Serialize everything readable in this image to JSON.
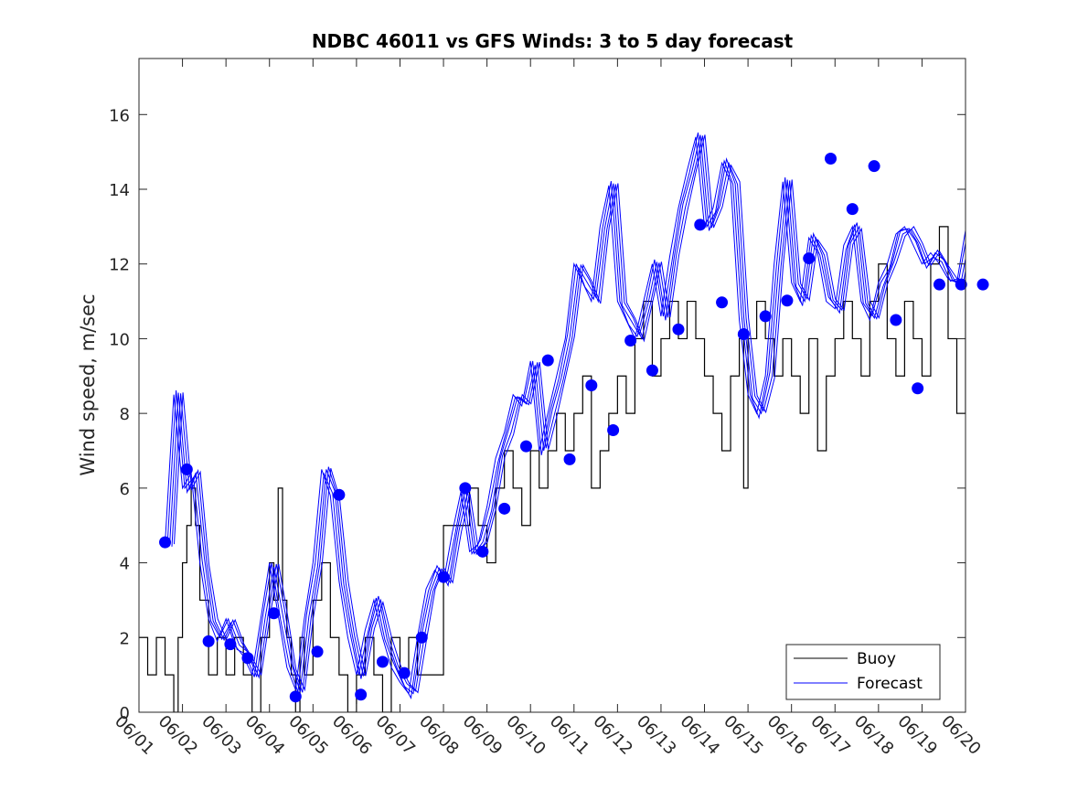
{
  "chart_data": {
    "type": "line",
    "title": "NDBC 46011 vs GFS Winds: 3 to 5 day forecast",
    "xlabel": "",
    "ylabel": "Wind speed, m/sec",
    "ylim": [
      0,
      17.5
    ],
    "yticks": [
      0,
      2,
      4,
      6,
      8,
      10,
      12,
      14,
      16
    ],
    "xlim": [
      "06/01",
      "06/20"
    ],
    "x_tick_labels": [
      "06/01",
      "06/02",
      "06/03",
      "06/04",
      "06/05",
      "06/06",
      "06/07",
      "06/08",
      "06/09",
      "06/10",
      "06/11",
      "06/12",
      "06/13",
      "06/14",
      "06/15",
      "06/16",
      "06/17",
      "06/18",
      "06/19",
      "06/20"
    ],
    "grid": false,
    "legend": {
      "position": "bottom-right",
      "entries": [
        {
          "label": "Buoy",
          "color": "#000000"
        },
        {
          "label": "Forecast",
          "color": "#0000ff"
        }
      ]
    },
    "colors": {
      "buoy": "#000000",
      "forecast": "#0000ff",
      "markers": "#0000ff"
    },
    "series": [
      {
        "name": "Buoy",
        "x_day": [
          0.0,
          0.2,
          0.4,
          0.6,
          0.8,
          0.9,
          1.0,
          1.1,
          1.2,
          1.3,
          1.4,
          1.6,
          1.8,
          2.0,
          2.2,
          2.4,
          2.6,
          2.8,
          3.0,
          3.1,
          3.2,
          3.3,
          3.4,
          3.5,
          3.6,
          3.7,
          3.8,
          4.0,
          4.2,
          4.4,
          4.6,
          4.8,
          5.0,
          5.2,
          5.4,
          5.6,
          5.8,
          6.0,
          6.2,
          6.4,
          6.6,
          6.8,
          7.0,
          7.2,
          7.4,
          7.6,
          7.8,
          8.0,
          8.2,
          8.4,
          8.6,
          8.8,
          9.0,
          9.2,
          9.4,
          9.6,
          9.8,
          10.0,
          10.2,
          10.4,
          10.6,
          10.8,
          11.0,
          11.2,
          11.4,
          11.6,
          11.8,
          12.0,
          12.2,
          12.4,
          12.6,
          12.8,
          13.0,
          13.2,
          13.4,
          13.6,
          13.8,
          13.9,
          14.0,
          14.2,
          14.4,
          14.6,
          14.8,
          15.0,
          15.2,
          15.4,
          15.6,
          15.8,
          16.0,
          16.2,
          16.4,
          16.6,
          16.8,
          17.0,
          17.2,
          17.4,
          17.6,
          17.8,
          18.0,
          18.2,
          18.4,
          18.6,
          18.8,
          19.0
        ],
        "values": [
          2,
          1,
          2,
          1,
          0,
          2,
          4,
          5,
          6,
          5,
          3,
          1,
          2,
          1,
          2,
          1,
          0,
          2,
          4,
          3,
          6,
          3,
          2,
          1,
          0,
          2,
          1,
          3,
          4,
          2,
          1,
          0,
          1,
          2,
          1,
          0,
          2,
          1,
          2,
          1,
          1,
          1,
          5,
          5,
          5,
          6,
          5,
          4,
          6,
          7,
          6,
          5,
          7,
          6,
          7,
          8,
          7,
          8,
          9,
          6,
          7,
          8,
          9,
          8,
          10,
          11,
          9,
          10,
          11,
          10,
          11,
          10,
          9,
          8,
          7,
          9,
          10,
          6,
          10,
          11,
          10,
          9,
          10,
          9,
          8,
          10,
          7,
          9,
          10,
          11,
          10,
          9,
          11,
          12,
          10,
          9,
          11,
          10,
          9,
          12,
          13,
          10,
          8,
          12
        ],
        "style": "black staircase line"
      },
      {
        "name": "Forecast",
        "x_day": [
          0.6,
          0.8,
          1.0,
          1.2,
          1.4,
          1.6,
          1.8,
          2.0,
          2.2,
          2.4,
          2.6,
          2.8,
          3.0,
          3.2,
          3.4,
          3.6,
          3.8,
          4.0,
          4.2,
          4.4,
          4.6,
          4.8,
          5.0,
          5.2,
          5.4,
          5.6,
          5.8,
          6.0,
          6.2,
          6.4,
          6.6,
          6.8,
          7.0,
          7.2,
          7.4,
          7.6,
          7.8,
          8.0,
          8.2,
          8.4,
          8.6,
          8.8,
          9.0,
          9.2,
          9.4,
          9.6,
          9.8,
          10.0,
          10.2,
          10.4,
          10.6,
          10.8,
          11.0,
          11.2,
          11.4,
          11.6,
          11.8,
          12.0,
          12.2,
          12.4,
          12.6,
          12.8,
          13.0,
          13.2,
          13.4,
          13.6,
          13.8,
          14.0,
          14.2,
          14.4,
          14.6,
          14.8,
          15.0,
          15.2,
          15.4,
          15.6,
          15.8,
          16.0,
          16.2,
          16.4,
          16.6,
          16.8,
          17.0,
          17.2,
          17.4,
          17.6,
          17.8,
          18.0,
          18.2,
          18.4,
          18.6,
          18.8,
          19.0
        ],
        "values": [
          4.5,
          8.5,
          6.0,
          6.4,
          4.0,
          2.5,
          1.9,
          2.5,
          1.8,
          1.5,
          1.0,
          2.5,
          4.0,
          2.6,
          1.2,
          0.6,
          2.5,
          4.0,
          6.5,
          5.8,
          3.5,
          2.0,
          1.0,
          2.2,
          3.0,
          2.0,
          1.2,
          0.8,
          0.5,
          2.0,
          3.3,
          3.8,
          3.5,
          4.8,
          5.9,
          4.3,
          4.5,
          5.5,
          6.8,
          7.5,
          8.5,
          8.2,
          9.4,
          7.0,
          8.0,
          9.0,
          10.0,
          12.0,
          11.5,
          11.0,
          13.0,
          14.1,
          11.0,
          10.5,
          10.0,
          11.0,
          12.0,
          10.6,
          12.2,
          13.5,
          14.5,
          15.4,
          13.0,
          13.5,
          14.7,
          14.2,
          10.5,
          8.5,
          8.0,
          9.0,
          12.0,
          14.2,
          11.5,
          11.0,
          12.7,
          12.3,
          11.0,
          10.8,
          12.5,
          13.0,
          11.0,
          10.5,
          11.5,
          12.0,
          12.8,
          13.0,
          12.5,
          12.0,
          12.3,
          12.0,
          11.6,
          11.5,
          12.9
        ],
        "style": "blue thin lines (ensemble)"
      },
      {
        "name": "Forecast markers",
        "x_day": [
          0.6,
          1.1,
          1.6,
          2.1,
          2.5,
          3.1,
          3.6,
          4.1,
          4.6,
          5.1,
          5.6,
          6.1,
          6.5,
          7.0,
          7.5,
          7.9,
          8.4,
          8.9,
          9.4,
          9.9,
          10.4,
          10.9,
          11.3,
          11.8,
          12.4,
          12.9,
          13.4,
          13.9,
          14.4,
          14.9,
          15.4,
          15.9,
          16.4,
          16.9,
          17.4,
          17.9,
          18.4,
          18.9,
          19.4
        ],
        "values": [
          4.55,
          6.5,
          1.9,
          1.82,
          1.45,
          2.65,
          0.42,
          1.62,
          5.82,
          0.47,
          1.35,
          1.05,
          2.0,
          3.62,
          6.0,
          4.3,
          5.45,
          7.12,
          9.42,
          6.77,
          8.75,
          7.55,
          9.95,
          9.15,
          10.25,
          13.05,
          10.97,
          10.12,
          10.6,
          11.02,
          12.15,
          14.82,
          13.47,
          14.62,
          10.5,
          8.67,
          11.45,
          11.45,
          11.45
        ]
      }
    ]
  }
}
